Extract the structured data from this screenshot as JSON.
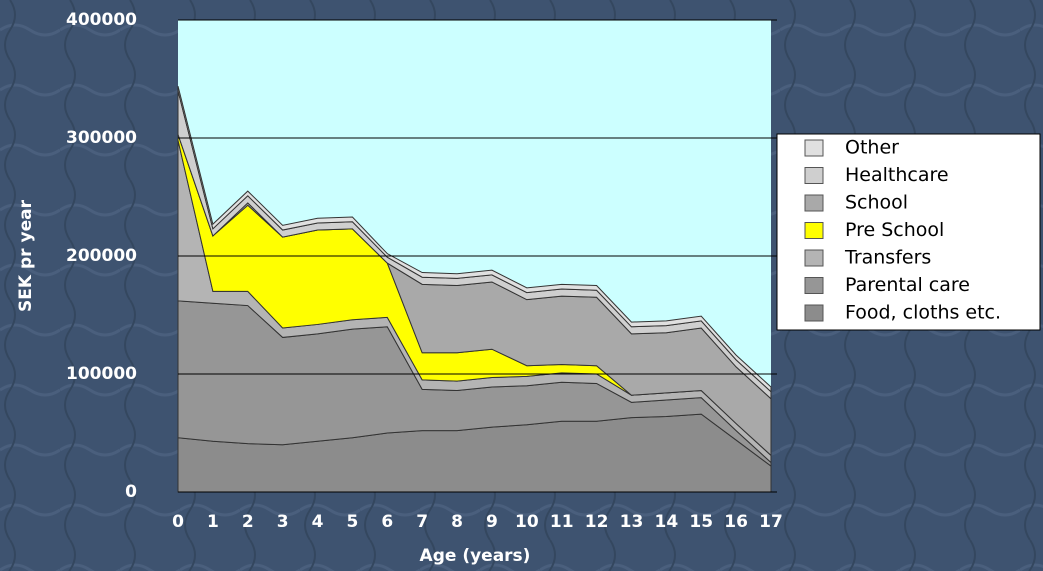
{
  "chart_data": {
    "type": "stacked_area",
    "x_label": "Age (years)",
    "y_label": "SEK pr year",
    "categories": [
      "0",
      "1",
      "2",
      "3",
      "4",
      "5",
      "6",
      "7",
      "8",
      "9",
      "10",
      "11",
      "12",
      "13",
      "14",
      "15",
      "16",
      "17"
    ],
    "ylim": [
      0,
      400000
    ],
    "yticks": [
      0,
      100000,
      200000,
      300000,
      400000
    ],
    "grid": true,
    "series": [
      {
        "name": "Food, cloths etc.",
        "color": "#8c8c8c",
        "values": [
          46000,
          43000,
          41000,
          40000,
          43000,
          46000,
          50000,
          52000,
          52000,
          55000,
          57000,
          60000,
          60000,
          63000,
          64000,
          66000,
          44000,
          22000
        ]
      },
      {
        "name": "Parental care",
        "color": "#969696",
        "values": [
          116000,
          117000,
          117000,
          91000,
          91000,
          92000,
          90000,
          35000,
          34000,
          34000,
          33000,
          33000,
          32000,
          13000,
          14000,
          14000,
          8000,
          3000
        ]
      },
      {
        "name": "Transfers",
        "color": "#b4b4b4",
        "values": [
          136000,
          10000,
          12000,
          8000,
          8000,
          8000,
          8000,
          8000,
          8000,
          8000,
          8000,
          8000,
          8000,
          6000,
          6000,
          6000,
          6000,
          6000
        ]
      },
      {
        "name": "Pre School",
        "color": "#ffff00",
        "values": [
          5000,
          47000,
          73000,
          77000,
          80000,
          77000,
          46000,
          23000,
          24000,
          24000,
          9000,
          7000,
          7000,
          0,
          0,
          0,
          0,
          0
        ]
      },
      {
        "name": "School",
        "color": "#a9a9a9",
        "values": [
          0,
          0,
          2000,
          0,
          0,
          0,
          0,
          58000,
          57000,
          57000,
          56000,
          58000,
          58000,
          52000,
          51000,
          53000,
          48000,
          48000
        ]
      },
      {
        "name": "Healthcare",
        "color": "#cfcfcf",
        "values": [
          37000,
          6000,
          6000,
          6000,
          6000,
          6000,
          5000,
          6000,
          6000,
          6000,
          6000,
          6000,
          6000,
          6000,
          6000,
          6000,
          6000,
          6000
        ]
      },
      {
        "name": "Other",
        "color": "#e0e0e0",
        "values": [
          4000,
          4000,
          4000,
          4000,
          4000,
          4000,
          3000,
          4000,
          4000,
          4000,
          4000,
          4000,
          4000,
          4000,
          4000,
          4000,
          4000,
          4000
        ]
      }
    ]
  }
}
